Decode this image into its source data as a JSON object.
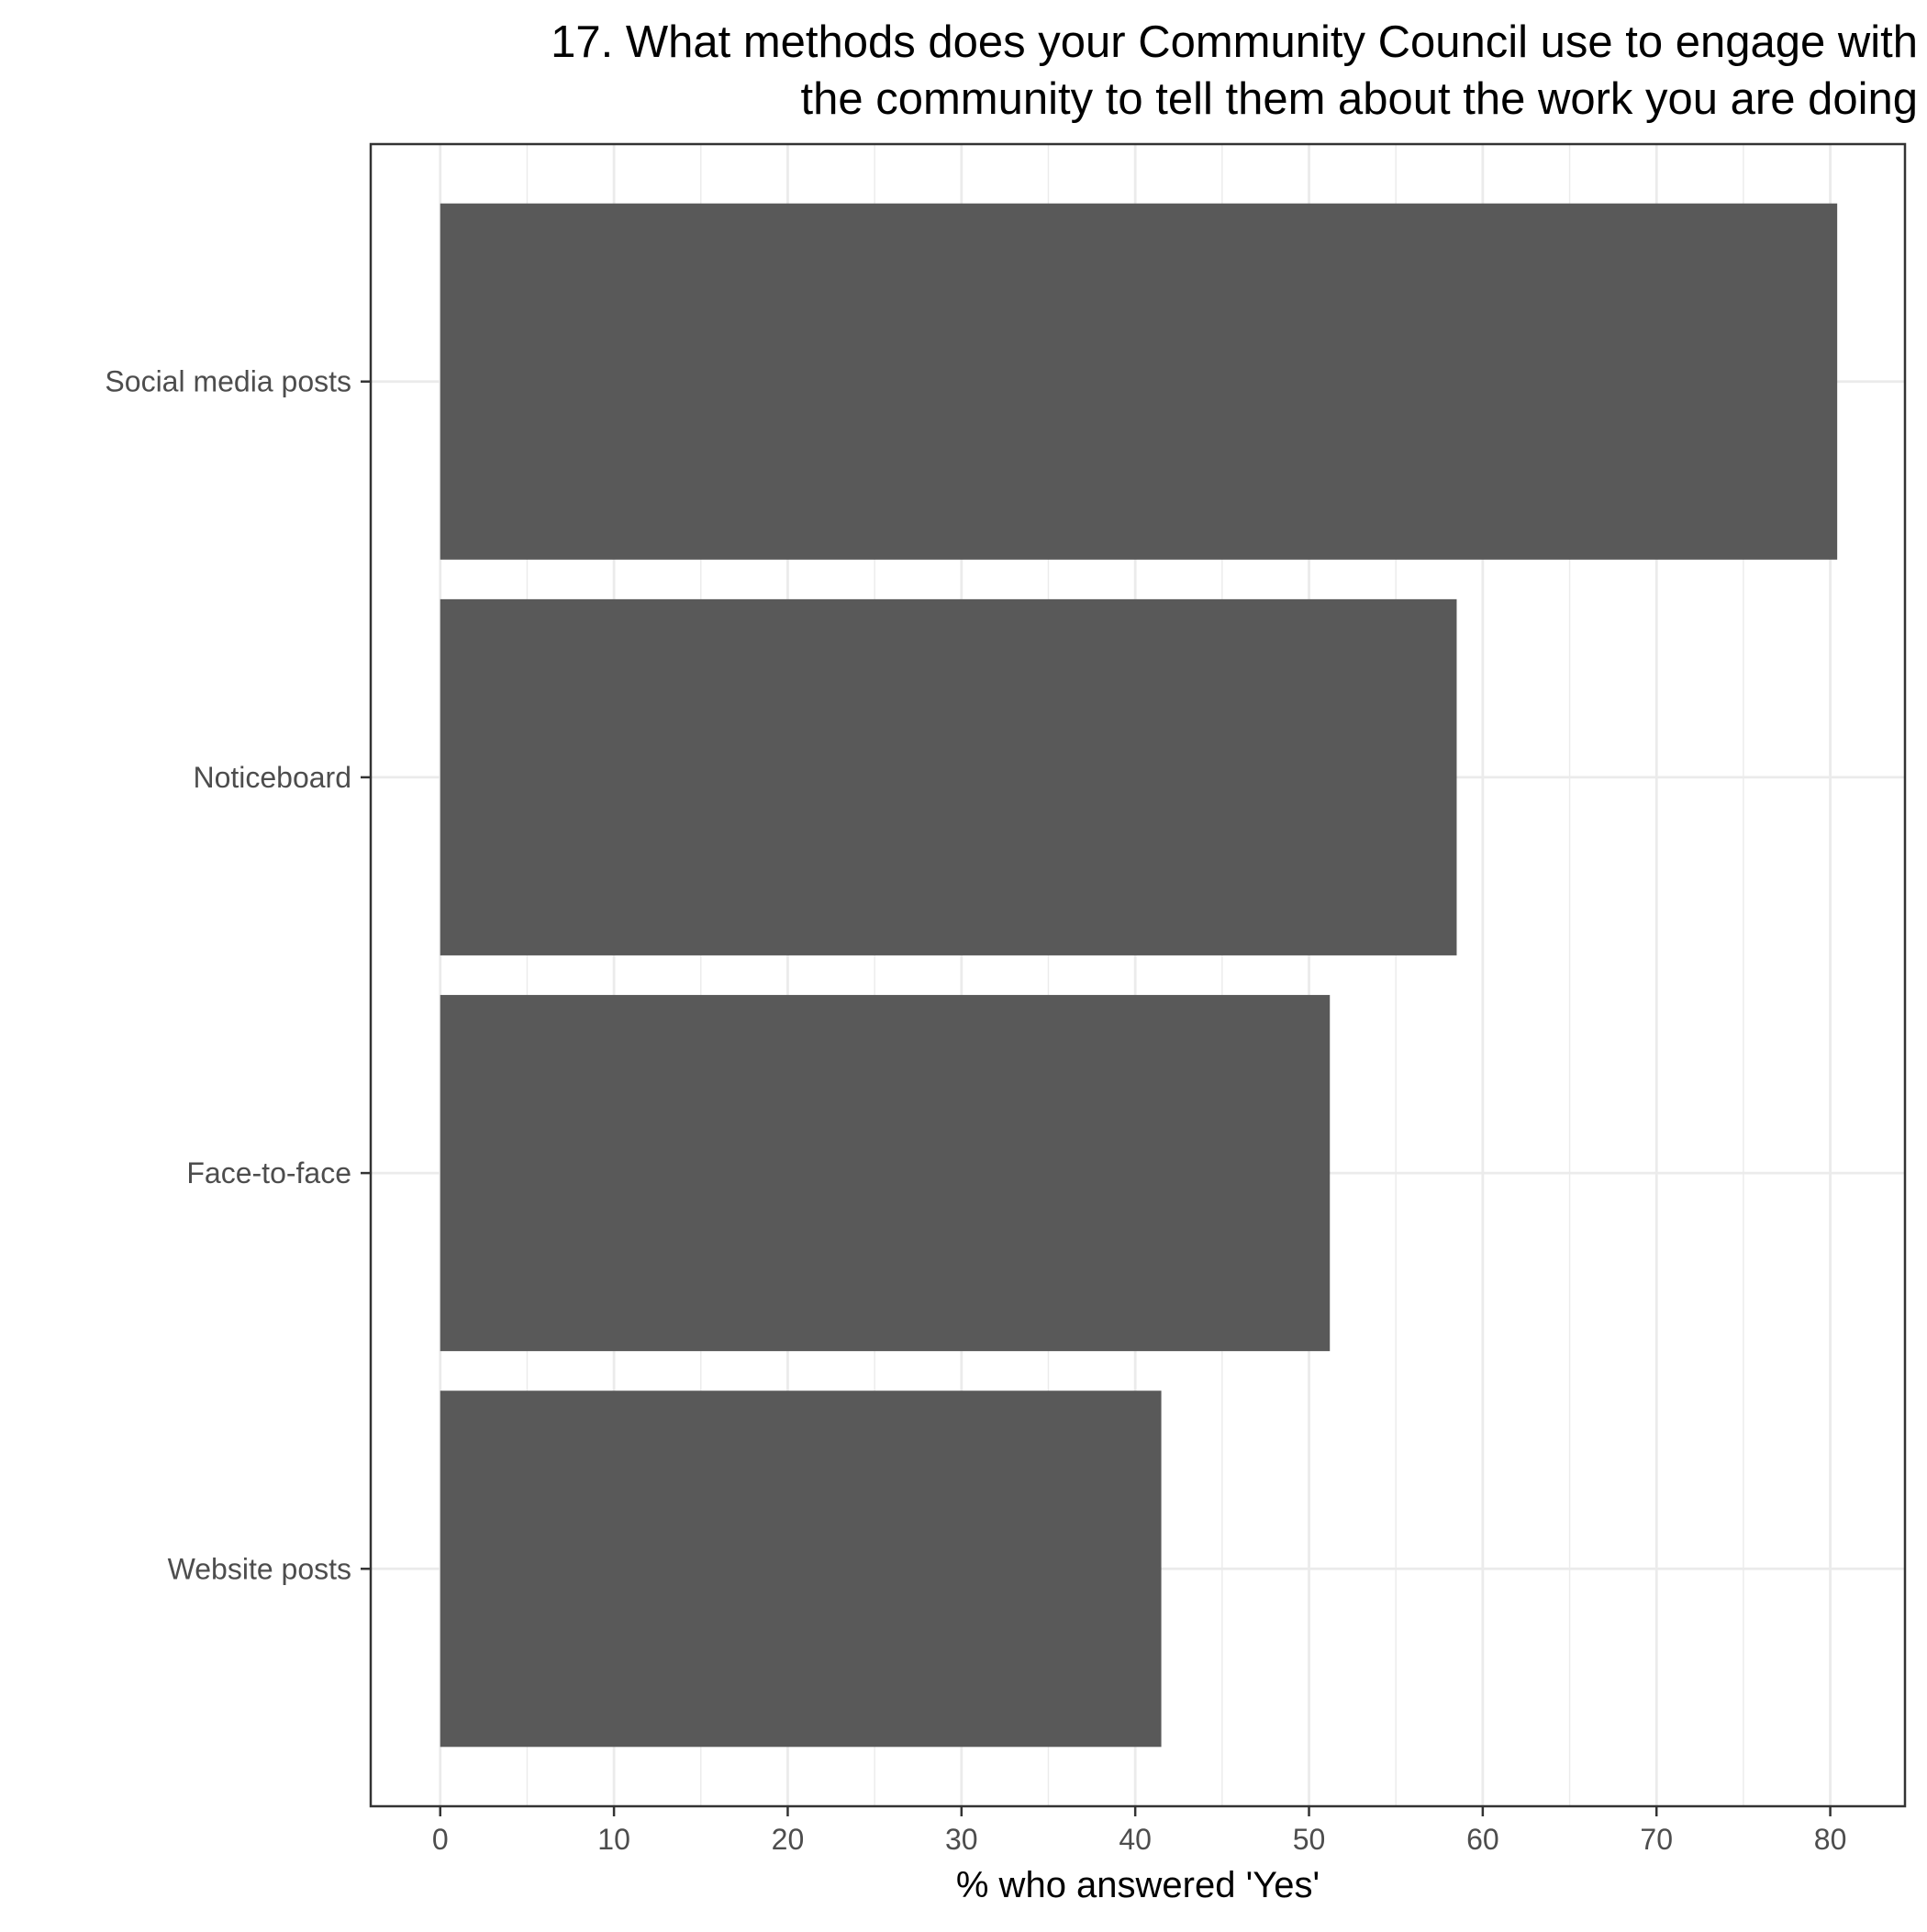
{
  "chart_data": {
    "type": "bar",
    "orientation": "horizontal",
    "title": "17. What methods does your Community Council use to engage with the community to tell them about the work you are doing",
    "title_lines": [
      "17. What methods does your Community Council use to engage with",
      "the community to tell them about the work you are doing"
    ],
    "xlabel": "% who answered 'Yes'",
    "ylabel": "",
    "categories": [
      "Social media posts",
      "Noticeboard",
      "Face-to-face",
      "Website posts"
    ],
    "values": [
      80.4,
      58.5,
      51.2,
      41.5
    ],
    "xlim": [
      -4,
      84.3
    ],
    "xticks": [
      0,
      10,
      20,
      30,
      40,
      50,
      60,
      70,
      80
    ],
    "xtick_labels": [
      "0",
      "10",
      "20",
      "30",
      "40",
      "50",
      "60",
      "70",
      "80"
    ],
    "grid": true,
    "theme": "bw",
    "bar_color": "#595959",
    "grid_color": "#ebebeb",
    "panel_border_color": "#333333"
  }
}
